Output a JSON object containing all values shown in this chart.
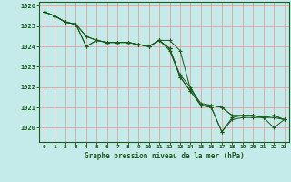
{
  "title": "Graphe pression niveau de la mer (hPa)",
  "bg_color": "#c5eaea",
  "grid_color": "#e8a0a0",
  "line_color": "#1a5c1a",
  "xlim": [
    -0.5,
    23.5
  ],
  "ylim": [
    1019.3,
    1026.2
  ],
  "yticks": [
    1020,
    1021,
    1022,
    1023,
    1024,
    1025,
    1026
  ],
  "xticks": [
    0,
    1,
    2,
    3,
    4,
    5,
    6,
    7,
    8,
    9,
    10,
    11,
    12,
    13,
    14,
    15,
    16,
    17,
    18,
    19,
    20,
    21,
    22,
    23
  ],
  "series": [
    [
      1025.7,
      1025.5,
      1025.2,
      1025.1,
      1024.0,
      1024.3,
      1024.2,
      1024.2,
      1024.2,
      1024.1,
      1024.0,
      1024.3,
      1023.9,
      1022.6,
      1022.0,
      1021.1,
      1021.1,
      1021.0,
      1020.6,
      1020.6,
      1020.6,
      1020.5,
      1020.6,
      1020.4
    ],
    [
      1025.7,
      1025.5,
      1025.2,
      1025.1,
      1024.5,
      1024.3,
      1024.2,
      1024.2,
      1024.2,
      1024.1,
      1024.0,
      1024.3,
      1023.8,
      1022.5,
      1021.8,
      1021.1,
      1021.0,
      1019.8,
      1020.4,
      1020.5,
      1020.5,
      1020.5,
      1020.0,
      1020.4
    ],
    [
      1025.7,
      1025.5,
      1025.2,
      1025.1,
      1024.5,
      1024.3,
      1024.2,
      1024.2,
      1024.2,
      1024.1,
      1024.0,
      1024.3,
      1023.9,
      1022.5,
      1021.8,
      1021.1,
      1021.0,
      1019.8,
      1020.5,
      1020.6,
      1020.6,
      1020.5,
      1020.5,
      1020.4
    ],
    [
      1025.7,
      1025.5,
      1025.2,
      1025.1,
      1024.0,
      1024.3,
      1024.2,
      1024.2,
      1024.2,
      1024.1,
      1024.0,
      1024.3,
      1024.3,
      1023.8,
      1021.9,
      1021.2,
      1021.1,
      1021.0,
      1020.6,
      1020.6,
      1020.6,
      1020.5,
      1020.6,
      1020.4
    ]
  ]
}
